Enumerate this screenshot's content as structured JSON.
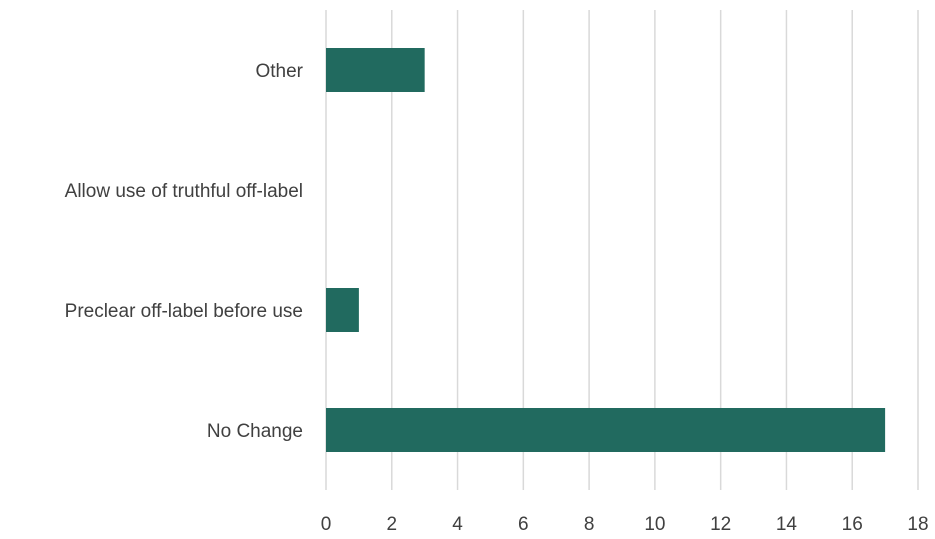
{
  "chart_data": {
    "type": "bar",
    "orientation": "horizontal",
    "categories": [
      "Other",
      "Allow use of truthful off-label",
      "Preclear off-label before use",
      "No Change"
    ],
    "values": [
      3,
      0,
      1,
      17
    ],
    "xlim": [
      0,
      18
    ],
    "xticks": [
      "0",
      "2",
      "4",
      "6",
      "8",
      "10",
      "12",
      "14",
      "16",
      "18"
    ],
    "title": "",
    "xlabel": "",
    "ylabel": "",
    "grid": "vertical",
    "legend": "none",
    "bar_color": "#216a5f",
    "gridline_color": "#d9d9d9",
    "text_color": "#404040"
  }
}
